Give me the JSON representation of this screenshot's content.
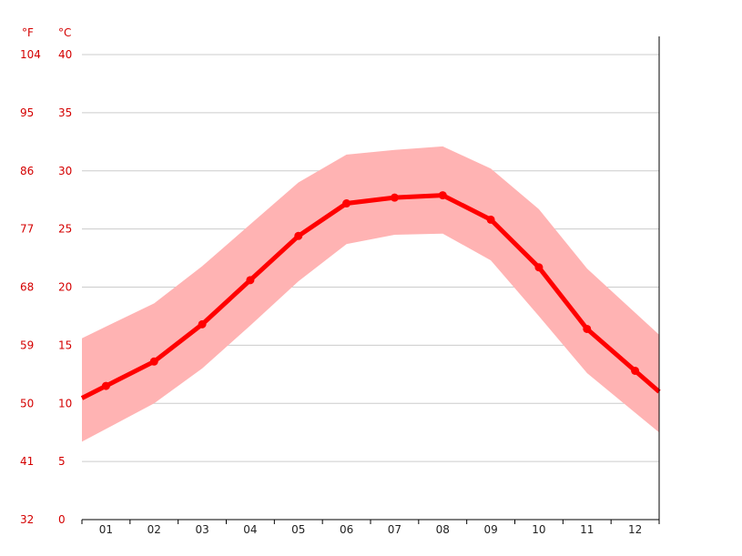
{
  "chart_data": {
    "type": "line",
    "categories": [
      "01",
      "02",
      "03",
      "04",
      "05",
      "06",
      "07",
      "08",
      "09",
      "10",
      "11",
      "12"
    ],
    "series": [
      {
        "role": "mean",
        "color": "#ff0000",
        "values": [
          11.5,
          13.6,
          16.8,
          20.6,
          24.4,
          27.2,
          27.7,
          27.9,
          25.8,
          21.7,
          16.4,
          12.8
        ]
      },
      {
        "role": "band",
        "color": "#ffb3b3",
        "min": [
          7.8,
          10.0,
          13.0,
          16.7,
          20.5,
          23.7,
          24.5,
          24.6,
          22.3,
          17.5,
          12.6,
          9.2
        ],
        "max": [
          16.6,
          18.6,
          21.8,
          25.4,
          29.0,
          31.4,
          31.8,
          32.1,
          30.2,
          26.7,
          21.6,
          17.8
        ]
      }
    ],
    "y_left_unit": "°F",
    "y_right_unit": "°C",
    "y_ticks_c": [
      0,
      5,
      10,
      15,
      20,
      25,
      30,
      35,
      40
    ],
    "y_ticks_f": [
      "32",
      "41",
      "50",
      "59",
      "68",
      "77",
      "86",
      "95",
      "104"
    ],
    "ylim": [
      0,
      40
    ],
    "grid": true
  }
}
